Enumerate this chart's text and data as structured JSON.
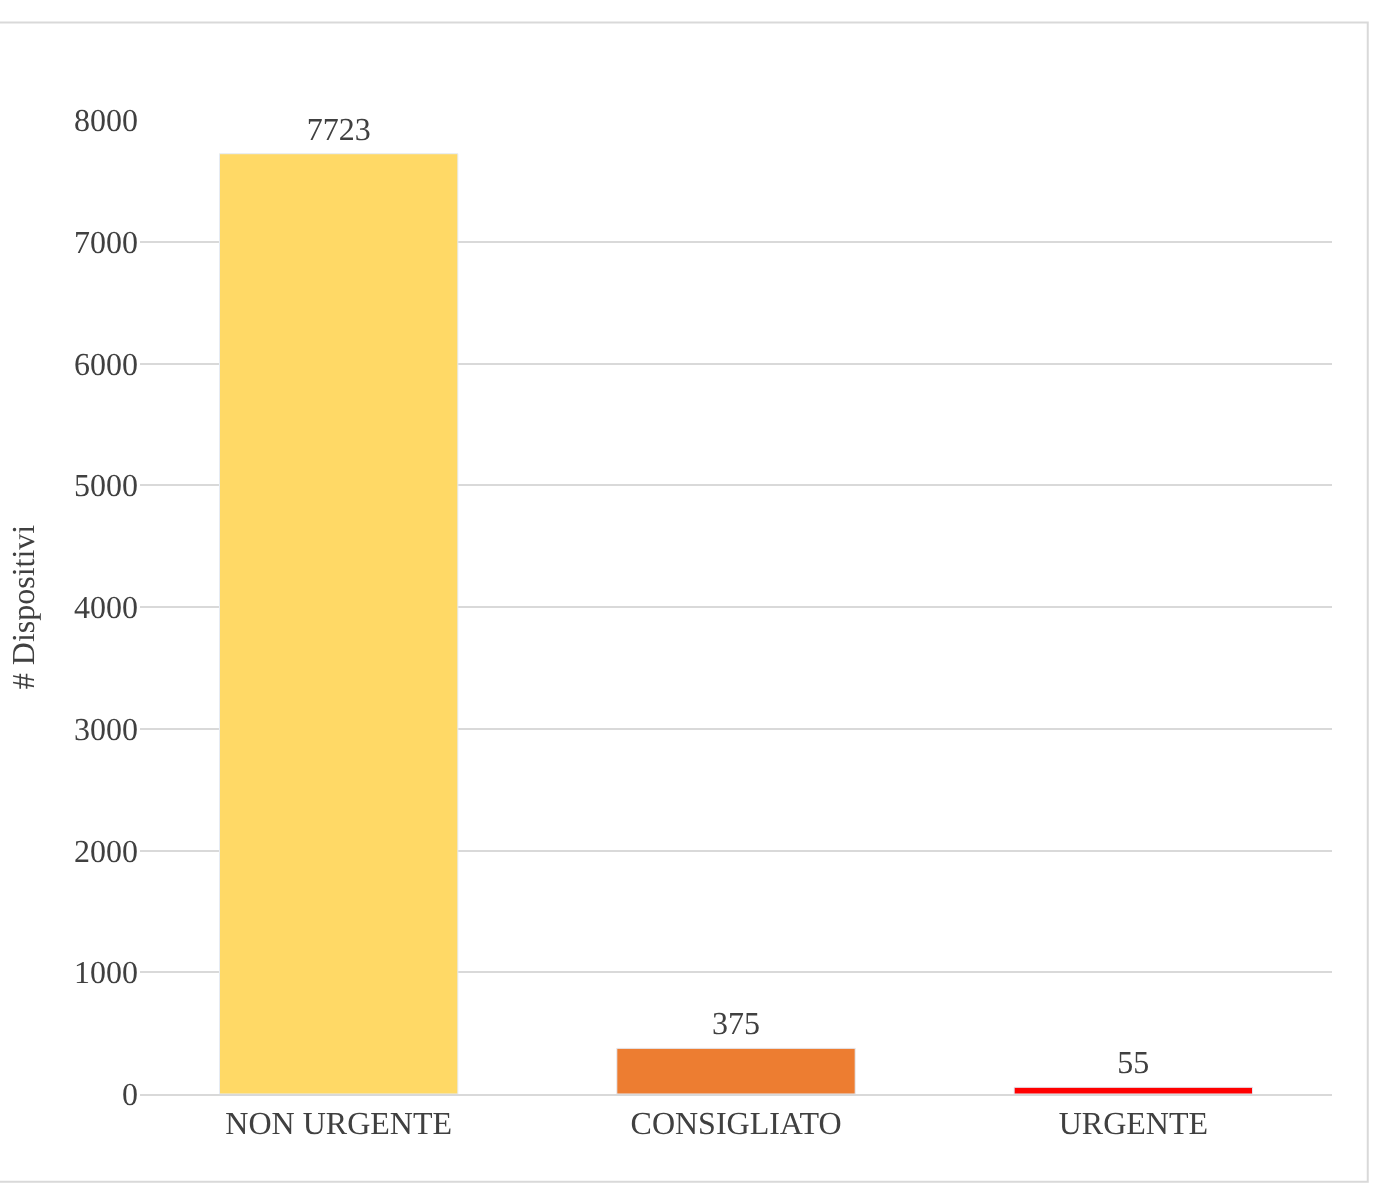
{
  "chart_data": {
    "type": "bar",
    "ylabel": "# Dispositivi",
    "categories": [
      "NON URGENTE",
      "CONSIGLIATO",
      "URGENTE"
    ],
    "values": [
      7723,
      375,
      55
    ],
    "colors": [
      "#ffd966",
      "#ed7d31",
      "#ff0000"
    ],
    "ylim": [
      0,
      8000
    ],
    "yticks": [
      0,
      1000,
      2000,
      3000,
      4000,
      5000,
      6000,
      7000,
      8000
    ],
    "grid": "y",
    "data_labels": true
  }
}
